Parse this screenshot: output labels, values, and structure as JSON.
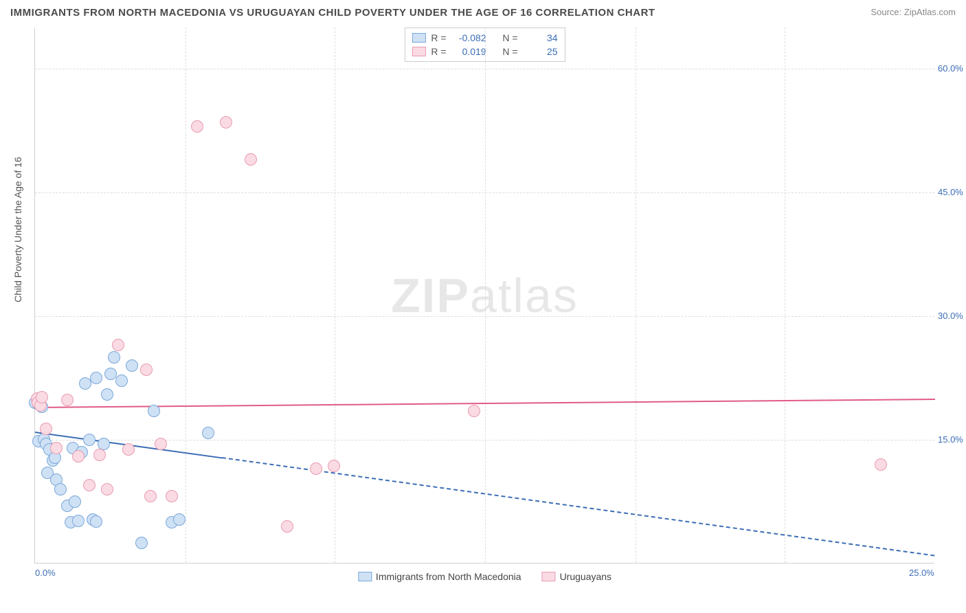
{
  "header": {
    "title": "IMMIGRANTS FROM NORTH MACEDONIA VS URUGUAYAN CHILD POVERTY UNDER THE AGE OF 16 CORRELATION CHART",
    "source": "Source: ZipAtlas.com"
  },
  "chart": {
    "type": "scatter",
    "y_axis_label": "Child Poverty Under the Age of 16",
    "watermark_bold": "ZIP",
    "watermark_light": "atlas",
    "xlim": [
      0,
      25
    ],
    "ylim": [
      0,
      65
    ],
    "x_ticks": [
      {
        "v": 0.0,
        "label": "0.0%"
      },
      {
        "v": 25.0,
        "label": "25.0%"
      }
    ],
    "x_minor_ticks": [
      4.17,
      8.33,
      12.5,
      16.67,
      20.83
    ],
    "y_ticks": [
      {
        "v": 15.0,
        "label": "15.0%"
      },
      {
        "v": 30.0,
        "label": "30.0%"
      },
      {
        "v": 45.0,
        "label": "45.0%"
      },
      {
        "v": 60.0,
        "label": "60.0%"
      }
    ],
    "grid_color": "#dddddd",
    "background_color": "#ffffff",
    "marker_radius": 9,
    "marker_stroke_width": 1.2,
    "series": [
      {
        "id": "macedonia",
        "label": "Immigrants from North Macedonia",
        "fill": "#cfe1f5",
        "stroke": "#79a7d9",
        "R": "-0.082",
        "N": "34",
        "trend": {
          "x1": 0.0,
          "y1": 16.0,
          "x2": 25.0,
          "y2": 1.0,
          "color": "#3b6db5",
          "solid_until_x": 5.2
        },
        "points": [
          {
            "x": 0.0,
            "y": 19.5
          },
          {
            "x": 0.1,
            "y": 19.3
          },
          {
            "x": 0.2,
            "y": 19.0
          },
          {
            "x": 0.1,
            "y": 14.8
          },
          {
            "x": 0.25,
            "y": 15.1
          },
          {
            "x": 0.3,
            "y": 14.5
          },
          {
            "x": 0.4,
            "y": 13.8
          },
          {
            "x": 0.5,
            "y": 12.5
          },
          {
            "x": 0.55,
            "y": 12.8
          },
          {
            "x": 0.35,
            "y": 11.0
          },
          {
            "x": 0.6,
            "y": 10.2
          },
          {
            "x": 0.7,
            "y": 9.0
          },
          {
            "x": 0.9,
            "y": 7.0
          },
          {
            "x": 1.0,
            "y": 5.0
          },
          {
            "x": 1.2,
            "y": 5.2
          },
          {
            "x": 1.1,
            "y": 7.5
          },
          {
            "x": 1.05,
            "y": 14.0
          },
          {
            "x": 1.3,
            "y": 13.5
          },
          {
            "x": 1.5,
            "y": 15.0
          },
          {
            "x": 1.6,
            "y": 5.3
          },
          {
            "x": 1.7,
            "y": 5.1
          },
          {
            "x": 1.9,
            "y": 14.5
          },
          {
            "x": 2.0,
            "y": 20.5
          },
          {
            "x": 1.4,
            "y": 21.8
          },
          {
            "x": 1.7,
            "y": 22.5
          },
          {
            "x": 2.1,
            "y": 23.0
          },
          {
            "x": 2.4,
            "y": 22.2
          },
          {
            "x": 2.2,
            "y": 25.0
          },
          {
            "x": 2.7,
            "y": 24.0
          },
          {
            "x": 2.95,
            "y": 2.5
          },
          {
            "x": 3.3,
            "y": 18.5
          },
          {
            "x": 3.8,
            "y": 5.0
          },
          {
            "x": 4.0,
            "y": 5.3
          },
          {
            "x": 4.8,
            "y": 15.8
          }
        ]
      },
      {
        "id": "uruguay",
        "label": "Uruguayans",
        "fill": "#fadbe3",
        "stroke": "#e89ab0",
        "R": "0.019",
        "N": "25",
        "trend": {
          "x1": 0.0,
          "y1": 19.0,
          "x2": 25.0,
          "y2": 20.0,
          "color": "#e05a8a",
          "solid_until_x": 25.0
        },
        "points": [
          {
            "x": 0.05,
            "y": 20.0
          },
          {
            "x": 0.08,
            "y": 19.5
          },
          {
            "x": 0.15,
            "y": 19.2
          },
          {
            "x": 0.3,
            "y": 16.3
          },
          {
            "x": 0.6,
            "y": 14.0
          },
          {
            "x": 0.9,
            "y": 19.8
          },
          {
            "x": 1.2,
            "y": 13.0
          },
          {
            "x": 1.5,
            "y": 9.5
          },
          {
            "x": 1.8,
            "y": 13.2
          },
          {
            "x": 2.0,
            "y": 9.0
          },
          {
            "x": 2.3,
            "y": 26.5
          },
          {
            "x": 2.6,
            "y": 13.8
          },
          {
            "x": 3.1,
            "y": 23.5
          },
          {
            "x": 3.2,
            "y": 8.2
          },
          {
            "x": 3.5,
            "y": 14.5
          },
          {
            "x": 3.8,
            "y": 8.2
          },
          {
            "x": 4.5,
            "y": 53.0
          },
          {
            "x": 5.3,
            "y": 53.5
          },
          {
            "x": 6.0,
            "y": 49.0
          },
          {
            "x": 7.0,
            "y": 4.5
          },
          {
            "x": 7.8,
            "y": 11.5
          },
          {
            "x": 8.3,
            "y": 11.8
          },
          {
            "x": 12.2,
            "y": 18.5
          },
          {
            "x": 23.5,
            "y": 12.0
          },
          {
            "x": 0.2,
            "y": 20.2
          }
        ]
      }
    ]
  }
}
